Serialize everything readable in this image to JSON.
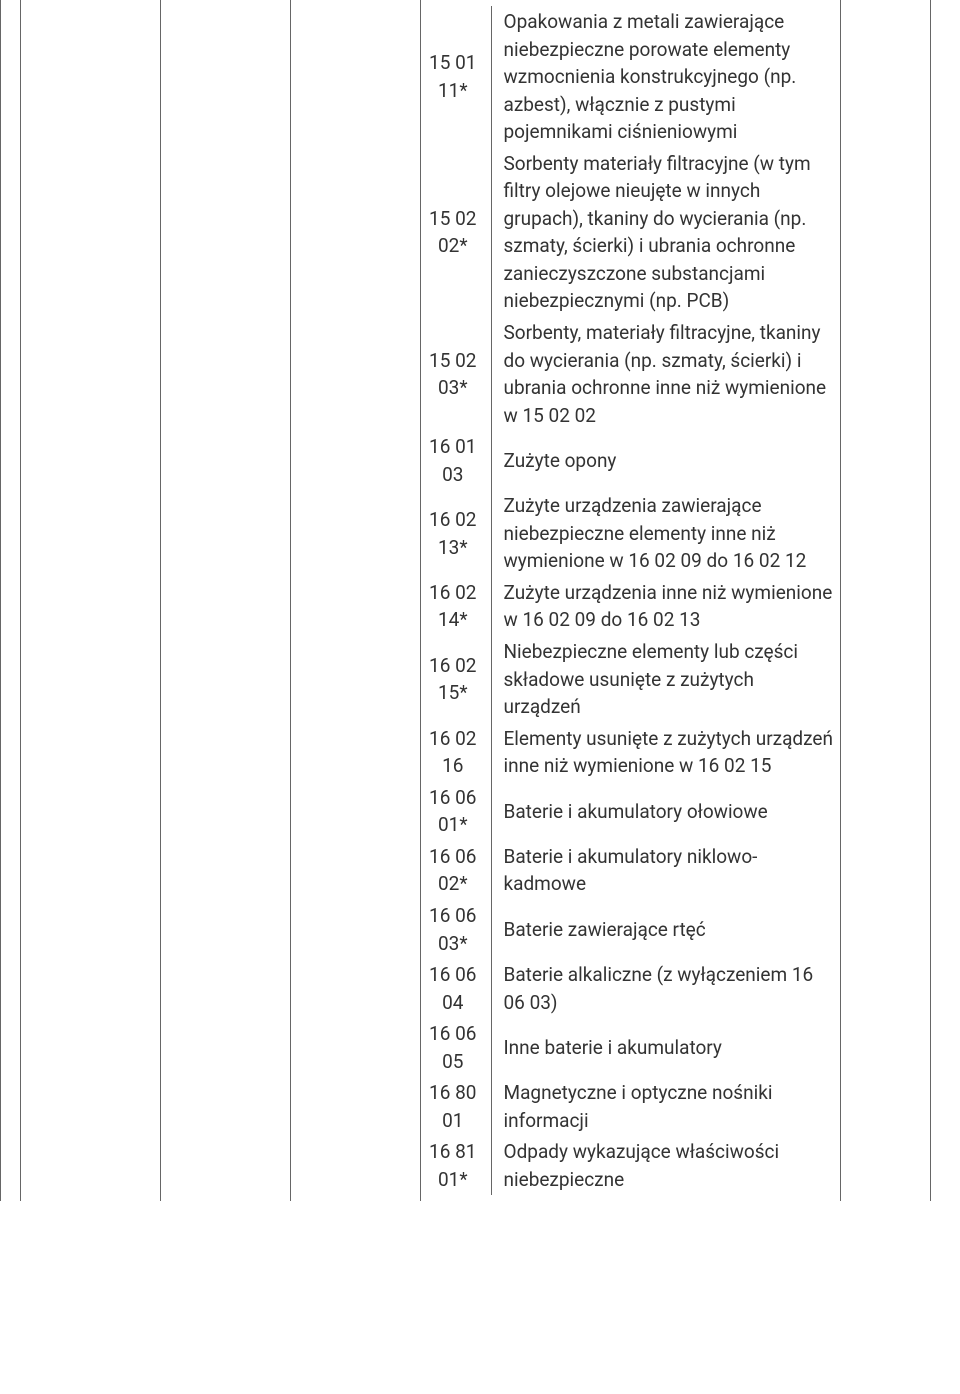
{
  "rows": [
    {
      "code": "15 01 11*",
      "desc": "Opakowania z metali zawierające niebezpieczne porowate elementy wzmocnienia konstrukcyjnego (np. azbest), włącznie z pustymi pojemnikami ciśnieniowymi"
    },
    {
      "code": "15 02 02*",
      "desc": "Sorbenty materiały filtracyjne (w tym filtry olejowe nieujęte w innych grupach), tkaniny do wycierania (np. szmaty, ścierki) i ubrania ochronne zanieczyszczone substancjami niebezpiecznymi (np. PCB)"
    },
    {
      "code": "15 02 03*",
      "desc": "Sorbenty, materiały filtracyjne, tkaniny do wycierania (np. szmaty, ścierki) i ubrania ochronne inne niż wymienione w 15 02 02"
    },
    {
      "code": "16 01 03",
      "desc": "Zużyte opony"
    },
    {
      "code": "16 02 13*",
      "desc": "Zużyte urządzenia zawierające niebezpieczne elementy inne niż wymienione w 16 02 09 do 16 02 12"
    },
    {
      "code": "16 02 14*",
      "desc": "Zużyte urządzenia inne niż wymienione w 16 02 09 do 16 02 13"
    },
    {
      "code": "16 02 15*",
      "desc": "Niebezpieczne elementy lub części składowe usunięte z zużytych urządzeń"
    },
    {
      "code": "16 02 16",
      "desc": "Elementy usunięte z zużytych urządzeń inne niż wymienione w 16 02 15"
    },
    {
      "code": "16 06 01*",
      "desc": "Baterie i akumulatory ołowiowe"
    },
    {
      "code": "16 06 02*",
      "desc": "Baterie i akumulatory niklowo-kadmowe"
    },
    {
      "code": "16 06 03*",
      "desc": "Baterie zawierające rtęć"
    },
    {
      "code": "16 06 04",
      "desc": "Baterie alkaliczne (z wyłączeniem 16 06 03)"
    },
    {
      "code": "16 06 05",
      "desc": "Inne baterie i akumulatory"
    },
    {
      "code": "16 80 01",
      "desc": "Magnetyczne i optyczne nośniki informacji"
    },
    {
      "code": "16 81 01*",
      "desc": "Odpady wykazujące właściwości niebezpieczne"
    }
  ]
}
